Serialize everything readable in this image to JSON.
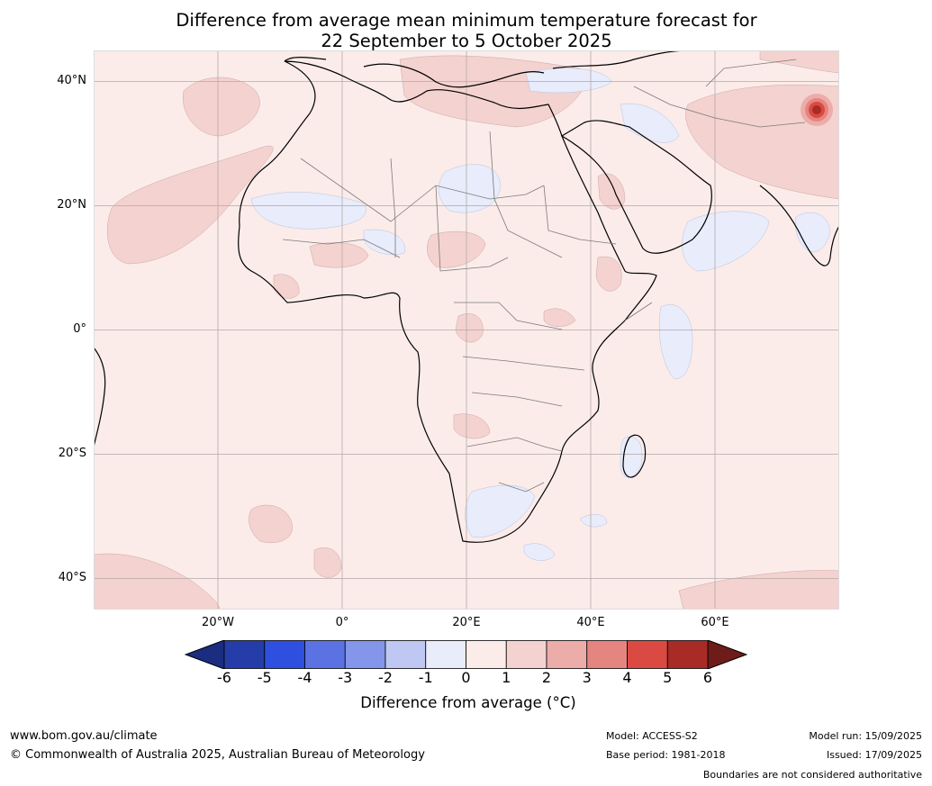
{
  "title": {
    "line1": "Difference from average mean minimum temperature forecast for",
    "line2": "22 September to 5 October 2025"
  },
  "map": {
    "lat_labels": [
      "40°N",
      "20°N",
      "0°",
      "20°S",
      "40°S"
    ],
    "lon_labels": [
      "20°W",
      "0°",
      "20°E",
      "40°E",
      "60°E"
    ],
    "background_anomaly_color": "#fbecea"
  },
  "colorbar": {
    "ticks": [
      "-6",
      "-5",
      "-4",
      "-3",
      "-2",
      "-1",
      "0",
      "1",
      "2",
      "3",
      "4",
      "5",
      "6"
    ],
    "colors": [
      "#243da8",
      "#2e4fdf",
      "#5b72e3",
      "#8496e9",
      "#bfc8f2",
      "#e8ecfb",
      "#fbecea",
      "#f4d2cf",
      "#ecadaa",
      "#e5857f",
      "#db4a42",
      "#a82b25"
    ],
    "under_color": "#1b2d7e",
    "over_color": "#6e1c19",
    "label": "Difference from average (°C)"
  },
  "footer": {
    "website": "www.bom.gov.au/climate",
    "copyright": "© Commonwealth of Australia 2025, Australian Bureau of Meteorology",
    "model": "Model: ACCESS-S2",
    "base_period": "Base period: 1981-2018",
    "model_run": "Model run: 15/09/2025",
    "issued": "Issued: 17/09/2025",
    "boundaries_note": "Boundaries are not considered authoritative"
  }
}
